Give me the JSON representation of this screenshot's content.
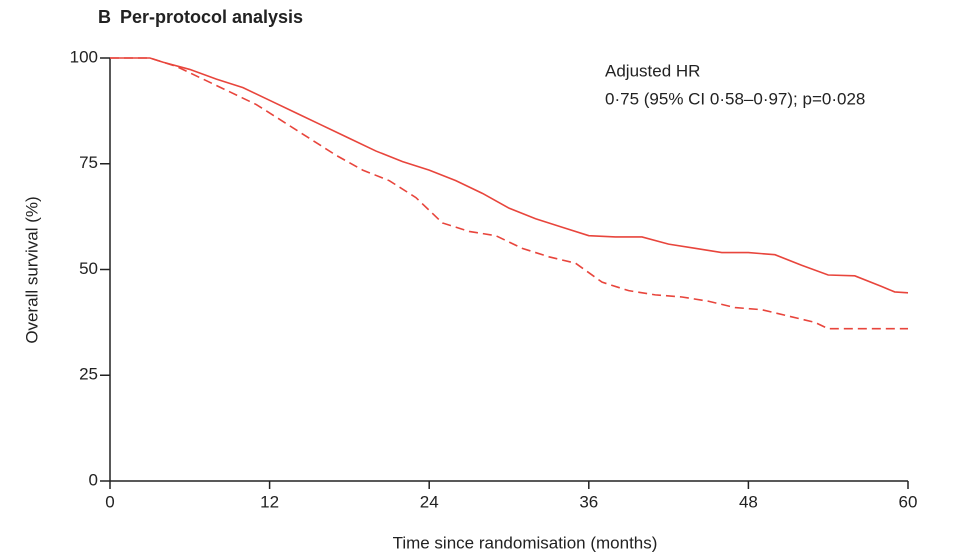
{
  "chart_data": {
    "type": "line",
    "panel_label": "B",
    "title": "Per-protocol analysis",
    "annotations": [
      "Adjusted HR",
      "0·75 (95% CI 0·58–0·97); p=0·028"
    ],
    "x_label": "Time since randomisation (months)",
    "y_label": "Overall survival (%)",
    "xlim": [
      0,
      60
    ],
    "xticks": [
      0,
      12,
      24,
      36,
      48,
      60
    ],
    "ylim": [
      0,
      100
    ],
    "yticks": [
      0,
      25,
      50,
      75,
      100
    ],
    "grid": false,
    "series": [
      {
        "color": "#e8453c",
        "style": "solid",
        "x": [
          0,
          3,
          4,
          6,
          8,
          10,
          12,
          14,
          16,
          18,
          20,
          22,
          24,
          26,
          28,
          30,
          32,
          34,
          36,
          38,
          40,
          42,
          44,
          46,
          48,
          50,
          52,
          54,
          56,
          58,
          59,
          60
        ],
        "values": [
          100,
          100,
          99,
          97.3,
          95,
          93,
          90,
          87,
          84,
          81,
          78,
          75.5,
          73.5,
          71,
          68,
          64.5,
          62,
          60,
          58,
          57.7,
          57.7,
          56,
          55,
          54,
          54,
          53.5,
          51,
          48.7,
          48.5,
          46,
          44.7,
          44.5
        ]
      },
      {
        "color": "#e8453c",
        "style": "dashed",
        "x": [
          0,
          3,
          5,
          7,
          9,
          11,
          13,
          15,
          17,
          19,
          21,
          23,
          25,
          27,
          29,
          31,
          33,
          35,
          37,
          39,
          41,
          43,
          45,
          47,
          49,
          51,
          53,
          54,
          60
        ],
        "values": [
          100,
          100,
          98,
          95,
          92,
          89,
          85,
          81,
          77,
          73.5,
          71,
          67,
          61,
          59,
          58,
          55,
          53,
          51.5,
          47,
          45,
          44,
          43.5,
          42.5,
          41,
          40.5,
          39,
          37.5,
          36,
          36
        ]
      }
    ]
  }
}
